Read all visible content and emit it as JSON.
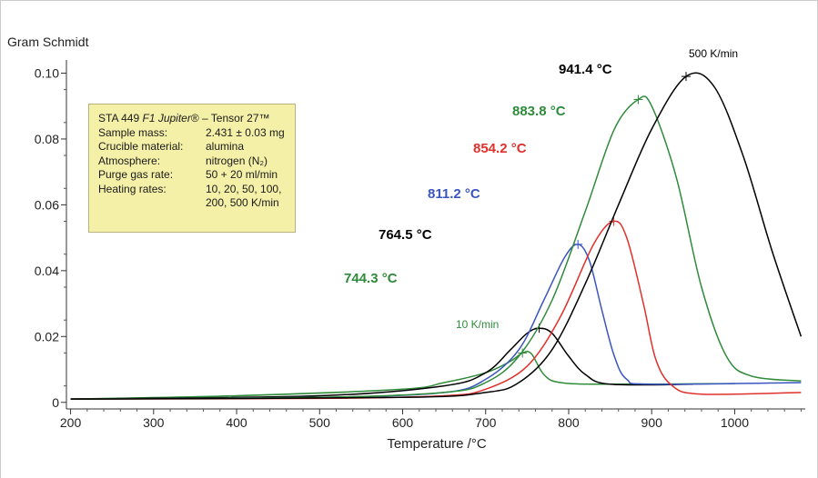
{
  "y_axis_title": "Gram Schmidt",
  "info_box": {
    "title_prefix": "STA 449 ",
    "title_italic": "F1 Jupiter",
    "title_suffix": "® – Tensor 27™",
    "rows": [
      {
        "key": "Sample mass:",
        "value": "2.431 ± 0.03 mg"
      },
      {
        "key": "Crucible material:",
        "value": "alumina"
      },
      {
        "key": "Atmosphere:",
        "value": "nitrogen (N₂)"
      },
      {
        "key": "Purge gas rate:",
        "value": "50 + 20 ml/min"
      },
      {
        "key": "Heating rates:",
        "value": "10, 20, 50, 100,"
      }
    ],
    "continuation": "200, 500 K/min"
  },
  "colors": {
    "black": "#000000",
    "green": "#2e8b3a",
    "red": "#e0302b",
    "blue": "#3a55c0",
    "box_fill": "#f5f0a8"
  },
  "chart_data": {
    "type": "line",
    "title": "",
    "xlabel": "Temperature /°C",
    "ylabel": "Gram Schmidt",
    "xlim": [
      195,
      1085
    ],
    "ylim": [
      -0.002,
      0.104
    ],
    "x_ticks": [
      "200",
      "300",
      "400",
      "500",
      "600",
      "700",
      "800",
      "900",
      "1000"
    ],
    "y_ticks": [
      "0",
      "0.02",
      "0.04",
      "0.06",
      "0.08",
      "0.10"
    ],
    "grid": false,
    "series": [
      {
        "name": "10 K/min",
        "color": "#2e8b3a",
        "points": [
          [
            200,
            0.001
          ],
          [
            400,
            0.002
          ],
          [
            600,
            0.004
          ],
          [
            650,
            0.006
          ],
          [
            700,
            0.009
          ],
          [
            730,
            0.0125
          ],
          [
            744.3,
            0.015
          ],
          [
            755,
            0.0148
          ],
          [
            770,
            0.0085
          ],
          [
            790,
            0.006
          ],
          [
            850,
            0.0055
          ],
          [
            1000,
            0.0057
          ]
        ],
        "peak": {
          "x": 744.3,
          "y": 0.015,
          "label": "744.3 °C"
        }
      },
      {
        "name": "20 K/min",
        "color": "#000000",
        "points": [
          [
            200,
            0.001
          ],
          [
            500,
            0.002
          ],
          [
            650,
            0.005
          ],
          [
            700,
            0.009
          ],
          [
            730,
            0.016
          ],
          [
            750,
            0.021
          ],
          [
            764.5,
            0.0225
          ],
          [
            780,
            0.021
          ],
          [
            800,
            0.014
          ],
          [
            820,
            0.0085
          ],
          [
            850,
            0.0055
          ],
          [
            950,
            0.0055
          ]
        ],
        "peak": {
          "x": 764.5,
          "y": 0.0225,
          "label": "764.5 °C"
        }
      },
      {
        "name": "50 K/min",
        "color": "#3a55c0",
        "points": [
          [
            200,
            0.001
          ],
          [
            500,
            0.0015
          ],
          [
            650,
            0.003
          ],
          [
            700,
            0.007
          ],
          [
            740,
            0.016
          ],
          [
            770,
            0.031
          ],
          [
            795,
            0.044
          ],
          [
            811.2,
            0.048
          ],
          [
            825,
            0.043
          ],
          [
            840,
            0.028
          ],
          [
            855,
            0.014
          ],
          [
            870,
            0.007
          ],
          [
            900,
            0.0055
          ],
          [
            1080,
            0.006
          ]
        ],
        "peak": {
          "x": 811.2,
          "y": 0.048,
          "label": "811.2 °C"
        }
      },
      {
        "name": "100 K/min",
        "color": "#e0302b",
        "points": [
          [
            200,
            0.001
          ],
          [
            500,
            0.0012
          ],
          [
            650,
            0.002
          ],
          [
            700,
            0.004
          ],
          [
            750,
            0.011
          ],
          [
            790,
            0.026
          ],
          [
            830,
            0.048
          ],
          [
            854.2,
            0.055
          ],
          [
            870,
            0.05
          ],
          [
            890,
            0.03
          ],
          [
            905,
            0.013
          ],
          [
            925,
            0.005
          ],
          [
            960,
            0.0025
          ],
          [
            1080,
            0.003
          ]
        ],
        "peak": {
          "x": 854.2,
          "y": 0.055,
          "label": "854.2 °C"
        }
      },
      {
        "name": "200 K/min",
        "color": "#2e8b3a",
        "points": [
          [
            200,
            0.001
          ],
          [
            500,
            0.0015
          ],
          [
            650,
            0.003
          ],
          [
            700,
            0.006
          ],
          [
            740,
            0.014
          ],
          [
            780,
            0.031
          ],
          [
            820,
            0.058
          ],
          [
            855,
            0.083
          ],
          [
            883.8,
            0.092
          ],
          [
            900,
            0.09
          ],
          [
            930,
            0.068
          ],
          [
            960,
            0.035
          ],
          [
            990,
            0.014
          ],
          [
            1020,
            0.008
          ],
          [
            1080,
            0.0065
          ]
        ],
        "peak": {
          "x": 883.8,
          "y": 0.092,
          "label": "883.8 °C"
        }
      },
      {
        "name": "500 K/min",
        "color": "#000000",
        "points": [
          [
            200,
            0.001
          ],
          [
            600,
            0.0015
          ],
          [
            700,
            0.003
          ],
          [
            740,
            0.006
          ],
          [
            780,
            0.016
          ],
          [
            820,
            0.036
          ],
          [
            860,
            0.06
          ],
          [
            900,
            0.083
          ],
          [
            941.4,
            0.099
          ],
          [
            975,
            0.096
          ],
          [
            1010,
            0.075
          ],
          [
            1045,
            0.046
          ],
          [
            1080,
            0.02
          ]
        ],
        "peak": {
          "x": 941.4,
          "y": 0.099,
          "label": "941.4 °C"
        }
      }
    ],
    "annotations": [
      {
        "text": "941.4 °C",
        "color": "#000000",
        "bold": true
      },
      {
        "text": "883.8 °C",
        "color": "#2e8b3a",
        "bold": true
      },
      {
        "text": "854.2 °C",
        "color": "#e0302b",
        "bold": true
      },
      {
        "text": "811.2 °C",
        "color": "#3a55c0",
        "bold": true
      },
      {
        "text": "764.5 °C",
        "color": "#000000",
        "bold": true
      },
      {
        "text": "744.3 °C",
        "color": "#2e8b3a",
        "bold": true
      },
      {
        "text": "500 K/min",
        "color": "#000000",
        "bold": false
      },
      {
        "text": "10 K/min",
        "color": "#2e8b3a",
        "bold": false
      }
    ]
  }
}
